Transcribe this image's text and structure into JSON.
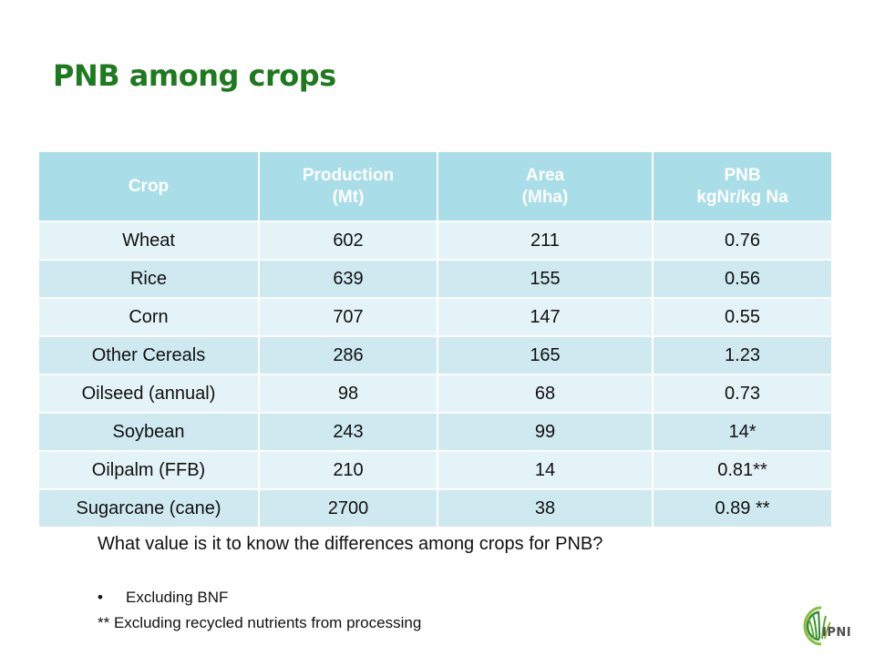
{
  "slide": {
    "title": "PNB among crops",
    "question": "What value is it to know the differences among crops for PNB?",
    "notes": [
      "Excluding BNF",
      "** Excluding recycled nutrients from processing"
    ],
    "logo_text": "IPNI",
    "colors": {
      "title": "#1e7a1e",
      "header_fill": "#a9dde7",
      "row_light": "#e4f3f7",
      "row_dark": "#cfe9f1"
    }
  },
  "table": {
    "headers": [
      [
        "Crop"
      ],
      [
        "Production",
        "(Mt)"
      ],
      [
        "Area",
        "(Mha)"
      ],
      [
        "PNB",
        "kgNr/kg Na"
      ]
    ],
    "rows": [
      [
        "Wheat",
        "602",
        "211",
        "0.76"
      ],
      [
        "Rice",
        "639",
        "155",
        "0.56"
      ],
      [
        "Corn",
        "707",
        "147",
        "0.55"
      ],
      [
        "Other Cereals",
        "286",
        "165",
        "1.23"
      ],
      [
        "Oilseed (annual)",
        "98",
        "68",
        "0.73"
      ],
      [
        "Soybean",
        "243",
        "99",
        "14*"
      ],
      [
        "Oilpalm (FFB)",
        "210",
        "14",
        "0.81**"
      ],
      [
        "Sugarcane (cane)",
        "2700",
        "38",
        "0.89 **"
      ]
    ]
  }
}
